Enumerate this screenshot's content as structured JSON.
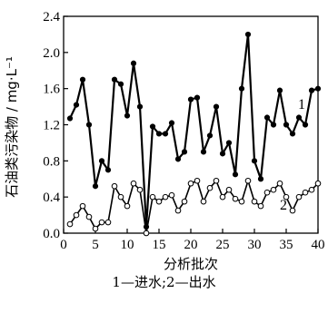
{
  "chart_data": {
    "type": "line",
    "xlabel": "分析批次",
    "ylabel": "石油类污染物 / mg·L⁻¹",
    "xlim": [
      0,
      40
    ],
    "ylim": [
      0.0,
      2.4
    ],
    "xticks": [
      "0",
      "5",
      "10",
      "15",
      "20",
      "25",
      "30",
      "35",
      "40"
    ],
    "yticks": [
      "0.0",
      "0.4",
      "0.8",
      "1.2",
      "1.6",
      "2.0",
      "2.4"
    ],
    "grid": false,
    "x": [
      1,
      2,
      3,
      4,
      5,
      6,
      7,
      8,
      9,
      10,
      11,
      12,
      13,
      14,
      15,
      16,
      17,
      18,
      19,
      20,
      21,
      22,
      23,
      24,
      25,
      26,
      27,
      28,
      29,
      30,
      31,
      32,
      33,
      34,
      35,
      36,
      37,
      38,
      39,
      40
    ],
    "series": [
      {
        "name": "1",
        "marker": "filled-circle",
        "values": [
          1.27,
          1.42,
          1.7,
          1.2,
          0.52,
          0.8,
          0.7,
          1.7,
          1.65,
          1.3,
          1.88,
          1.4,
          0.07,
          1.18,
          1.1,
          1.1,
          1.22,
          0.82,
          0.9,
          1.48,
          1.5,
          0.9,
          1.08,
          1.4,
          0.88,
          1.0,
          0.65,
          1.6,
          2.2,
          0.8,
          0.6,
          1.28,
          1.2,
          1.58,
          1.2,
          1.1,
          1.28,
          1.2,
          1.58,
          1.6
        ]
      },
      {
        "name": "2",
        "marker": "open-circle",
        "values": [
          0.1,
          0.2,
          0.3,
          0.18,
          0.05,
          0.12,
          0.12,
          0.52,
          0.4,
          0.3,
          0.55,
          0.48,
          0.0,
          0.4,
          0.35,
          0.4,
          0.42,
          0.25,
          0.35,
          0.55,
          0.58,
          0.35,
          0.5,
          0.58,
          0.4,
          0.48,
          0.38,
          0.35,
          0.58,
          0.35,
          0.3,
          0.45,
          0.48,
          0.55,
          0.4,
          0.25,
          0.4,
          0.45,
          0.48,
          0.55
        ]
      }
    ],
    "series_labels": [
      "1",
      "2"
    ],
    "caption": "1—进水;2—出水"
  }
}
